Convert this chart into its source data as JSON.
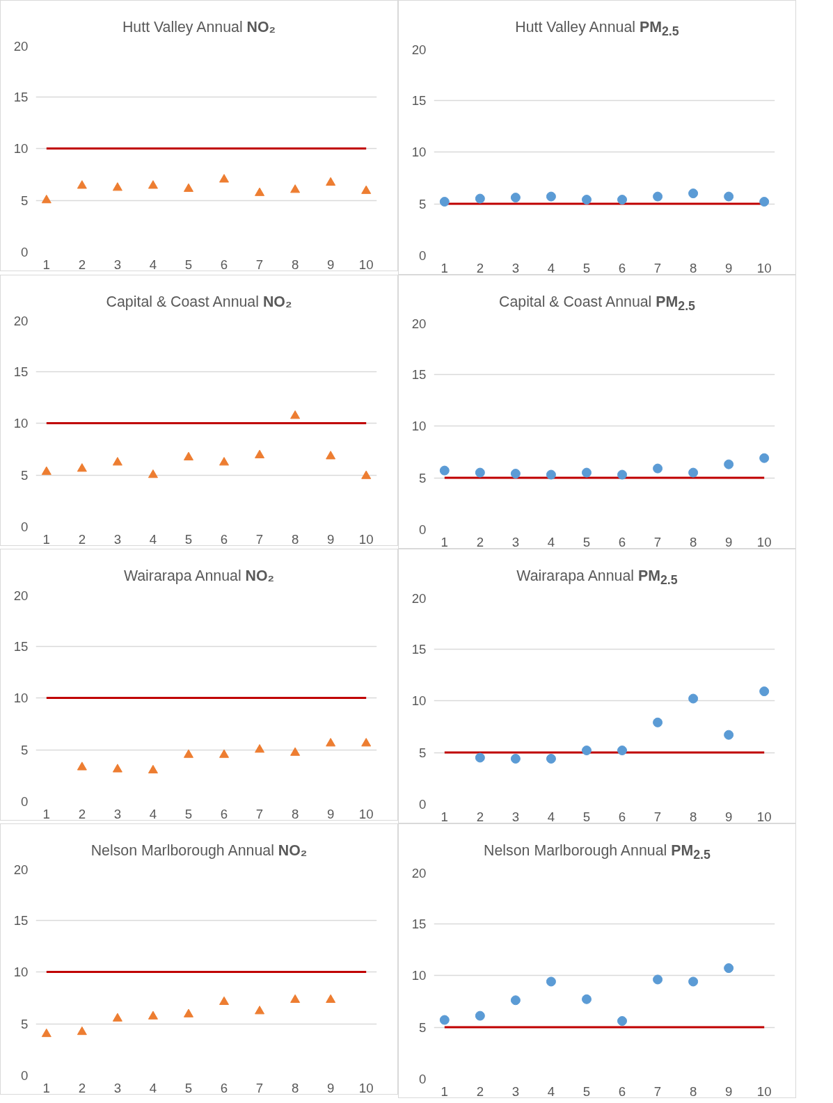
{
  "chart_data": [
    {
      "type": "scatter",
      "title": "Hutt Valley Annual NO₂",
      "x": [
        1,
        2,
        3,
        4,
        5,
        6,
        7,
        8,
        9,
        10
      ],
      "xlim": [
        0.7,
        10.3
      ],
      "xticks": [
        1,
        2,
        3,
        4,
        5,
        6,
        7,
        8,
        9,
        10
      ],
      "ylim": [
        0,
        20
      ],
      "yticks": [
        0,
        5,
        10,
        15,
        20
      ],
      "grid": "y",
      "marker": "triangle",
      "ref_lines": [
        {
          "axis": "y",
          "value": 10,
          "color": "#c00000"
        }
      ],
      "series": [
        {
          "color": "#ed7d31",
          "values": [
            5.0,
            6.4,
            6.2,
            6.4,
            6.1,
            7.0,
            5.7,
            6.0,
            6.7,
            5.9
          ]
        }
      ]
    },
    {
      "type": "scatter",
      "title": "Hutt Valley Annual PM$_{2.5}$",
      "x": [
        1,
        2,
        3,
        4,
        5,
        6,
        7,
        8,
        9,
        10
      ],
      "xlim": [
        0.7,
        10.3
      ],
      "xticks": [
        1,
        2,
        3,
        4,
        5,
        6,
        7,
        8,
        9,
        10
      ],
      "ylim": [
        0,
        20
      ],
      "yticks": [
        0,
        5,
        10,
        15,
        20
      ],
      "grid": "y",
      "marker": "circle",
      "ref_lines": [
        {
          "axis": "y",
          "value": 5,
          "color": "#c00000"
        }
      ],
      "series": [
        {
          "color": "#5b9bd5",
          "values": [
            5.2,
            5.5,
            5.6,
            5.7,
            5.4,
            5.4,
            5.7,
            6.0,
            5.7,
            5.2
          ]
        }
      ]
    },
    {
      "type": "scatter",
      "title": "Capital & Coast Annual NO₂",
      "x": [
        1,
        2,
        3,
        4,
        5,
        6,
        7,
        8,
        9,
        10
      ],
      "xlim": [
        0.7,
        10.3
      ],
      "xticks": [
        1,
        2,
        3,
        4,
        5,
        6,
        7,
        8,
        9,
        10
      ],
      "ylim": [
        0,
        20
      ],
      "yticks": [
        0,
        5,
        10,
        15,
        20
      ],
      "grid": "y",
      "marker": "triangle",
      "ref_lines": [
        {
          "axis": "y",
          "value": 10,
          "color": "#c00000"
        }
      ],
      "series": [
        {
          "color": "#ed7d31",
          "values": [
            5.3,
            5.6,
            6.2,
            5.0,
            6.7,
            6.2,
            6.9,
            10.7,
            6.8,
            4.9
          ]
        }
      ]
    },
    {
      "type": "scatter",
      "title": "Capital & Coast Annual PM$_{2.5}$",
      "x": [
        1,
        2,
        3,
        4,
        5,
        6,
        7,
        8,
        9,
        10
      ],
      "xlim": [
        0.7,
        10.3
      ],
      "xticks": [
        1,
        2,
        3,
        4,
        5,
        6,
        7,
        8,
        9,
        10
      ],
      "ylim": [
        0,
        20
      ],
      "yticks": [
        0,
        5,
        10,
        15,
        20
      ],
      "grid": "y",
      "marker": "circle",
      "ref_lines": [
        {
          "axis": "y",
          "value": 5,
          "color": "#c00000"
        }
      ],
      "series": [
        {
          "color": "#5b9bd5",
          "values": [
            5.7,
            5.5,
            5.4,
            5.3,
            5.5,
            5.3,
            5.9,
            5.5,
            6.3,
            6.9
          ]
        }
      ]
    },
    {
      "type": "scatter",
      "title": "Wairarapa Annual NO₂",
      "xlim": [
        0.7,
        10.3
      ],
      "xticks": [
        1,
        2,
        3,
        4,
        5,
        6,
        7,
        8,
        9,
        10
      ],
      "ylim": [
        0,
        20
      ],
      "yticks": [
        0,
        5,
        10,
        15,
        20
      ],
      "grid": "y",
      "marker": "triangle",
      "ref_lines": [
        {
          "axis": "y",
          "value": 10,
          "color": "#c00000"
        }
      ],
      "series": [
        {
          "color": "#ed7d31",
          "x": [
            2,
            3,
            4,
            5,
            6,
            7,
            8,
            9,
            10
          ],
          "values": [
            3.3,
            3.1,
            3.0,
            4.5,
            4.5,
            5.0,
            4.7,
            5.6,
            5.6
          ]
        }
      ]
    },
    {
      "type": "scatter",
      "title": "Wairarapa Annual PM$_{2.5}$",
      "xlim": [
        0.7,
        10.3
      ],
      "xticks": [
        1,
        2,
        3,
        4,
        5,
        6,
        7,
        8,
        9,
        10
      ],
      "ylim": [
        0,
        20
      ],
      "yticks": [
        0,
        5,
        10,
        15,
        20
      ],
      "grid": "y",
      "marker": "circle",
      "ref_lines": [
        {
          "axis": "y",
          "value": 5,
          "color": "#c00000"
        }
      ],
      "series": [
        {
          "color": "#5b9bd5",
          "x": [
            2,
            3,
            4,
            5,
            6,
            7,
            8,
            9,
            10
          ],
          "values": [
            4.5,
            4.4,
            4.4,
            5.2,
            5.2,
            7.9,
            10.2,
            6.7,
            10.9
          ]
        }
      ]
    },
    {
      "type": "scatter",
      "title": "Nelson Marlborough Annual NO₂",
      "xlim": [
        0.7,
        10.3
      ],
      "xticks": [
        1,
        2,
        3,
        4,
        5,
        6,
        7,
        8,
        9,
        10
      ],
      "ylim": [
        0,
        20
      ],
      "yticks": [
        0,
        5,
        10,
        15,
        20
      ],
      "grid": "y",
      "marker": "triangle",
      "ref_lines": [
        {
          "axis": "y",
          "value": 10,
          "color": "#c00000"
        }
      ],
      "series": [
        {
          "color": "#ed7d31",
          "x": [
            1,
            2,
            3,
            4,
            5,
            6,
            7,
            8,
            9
          ],
          "values": [
            4.0,
            4.2,
            5.5,
            5.7,
            5.9,
            7.1,
            6.2,
            7.3,
            7.3
          ]
        }
      ]
    },
    {
      "type": "scatter",
      "title": "Nelson Marlborough Annual PM$_{2.5}$",
      "xlim": [
        0.7,
        10.3
      ],
      "xticks": [
        1,
        2,
        3,
        4,
        5,
        6,
        7,
        8,
        9,
        10
      ],
      "ylim": [
        0,
        20
      ],
      "yticks": [
        0,
        5,
        10,
        15,
        20
      ],
      "grid": "y",
      "marker": "circle",
      "ref_lines": [
        {
          "axis": "y",
          "value": 5,
          "color": "#c00000"
        }
      ],
      "series": [
        {
          "color": "#5b9bd5",
          "x": [
            1,
            2,
            3,
            4,
            5,
            6,
            7,
            8,
            9
          ],
          "values": [
            5.7,
            6.1,
            7.6,
            9.4,
            7.7,
            5.6,
            9.6,
            9.4,
            10.7
          ]
        }
      ]
    }
  ]
}
